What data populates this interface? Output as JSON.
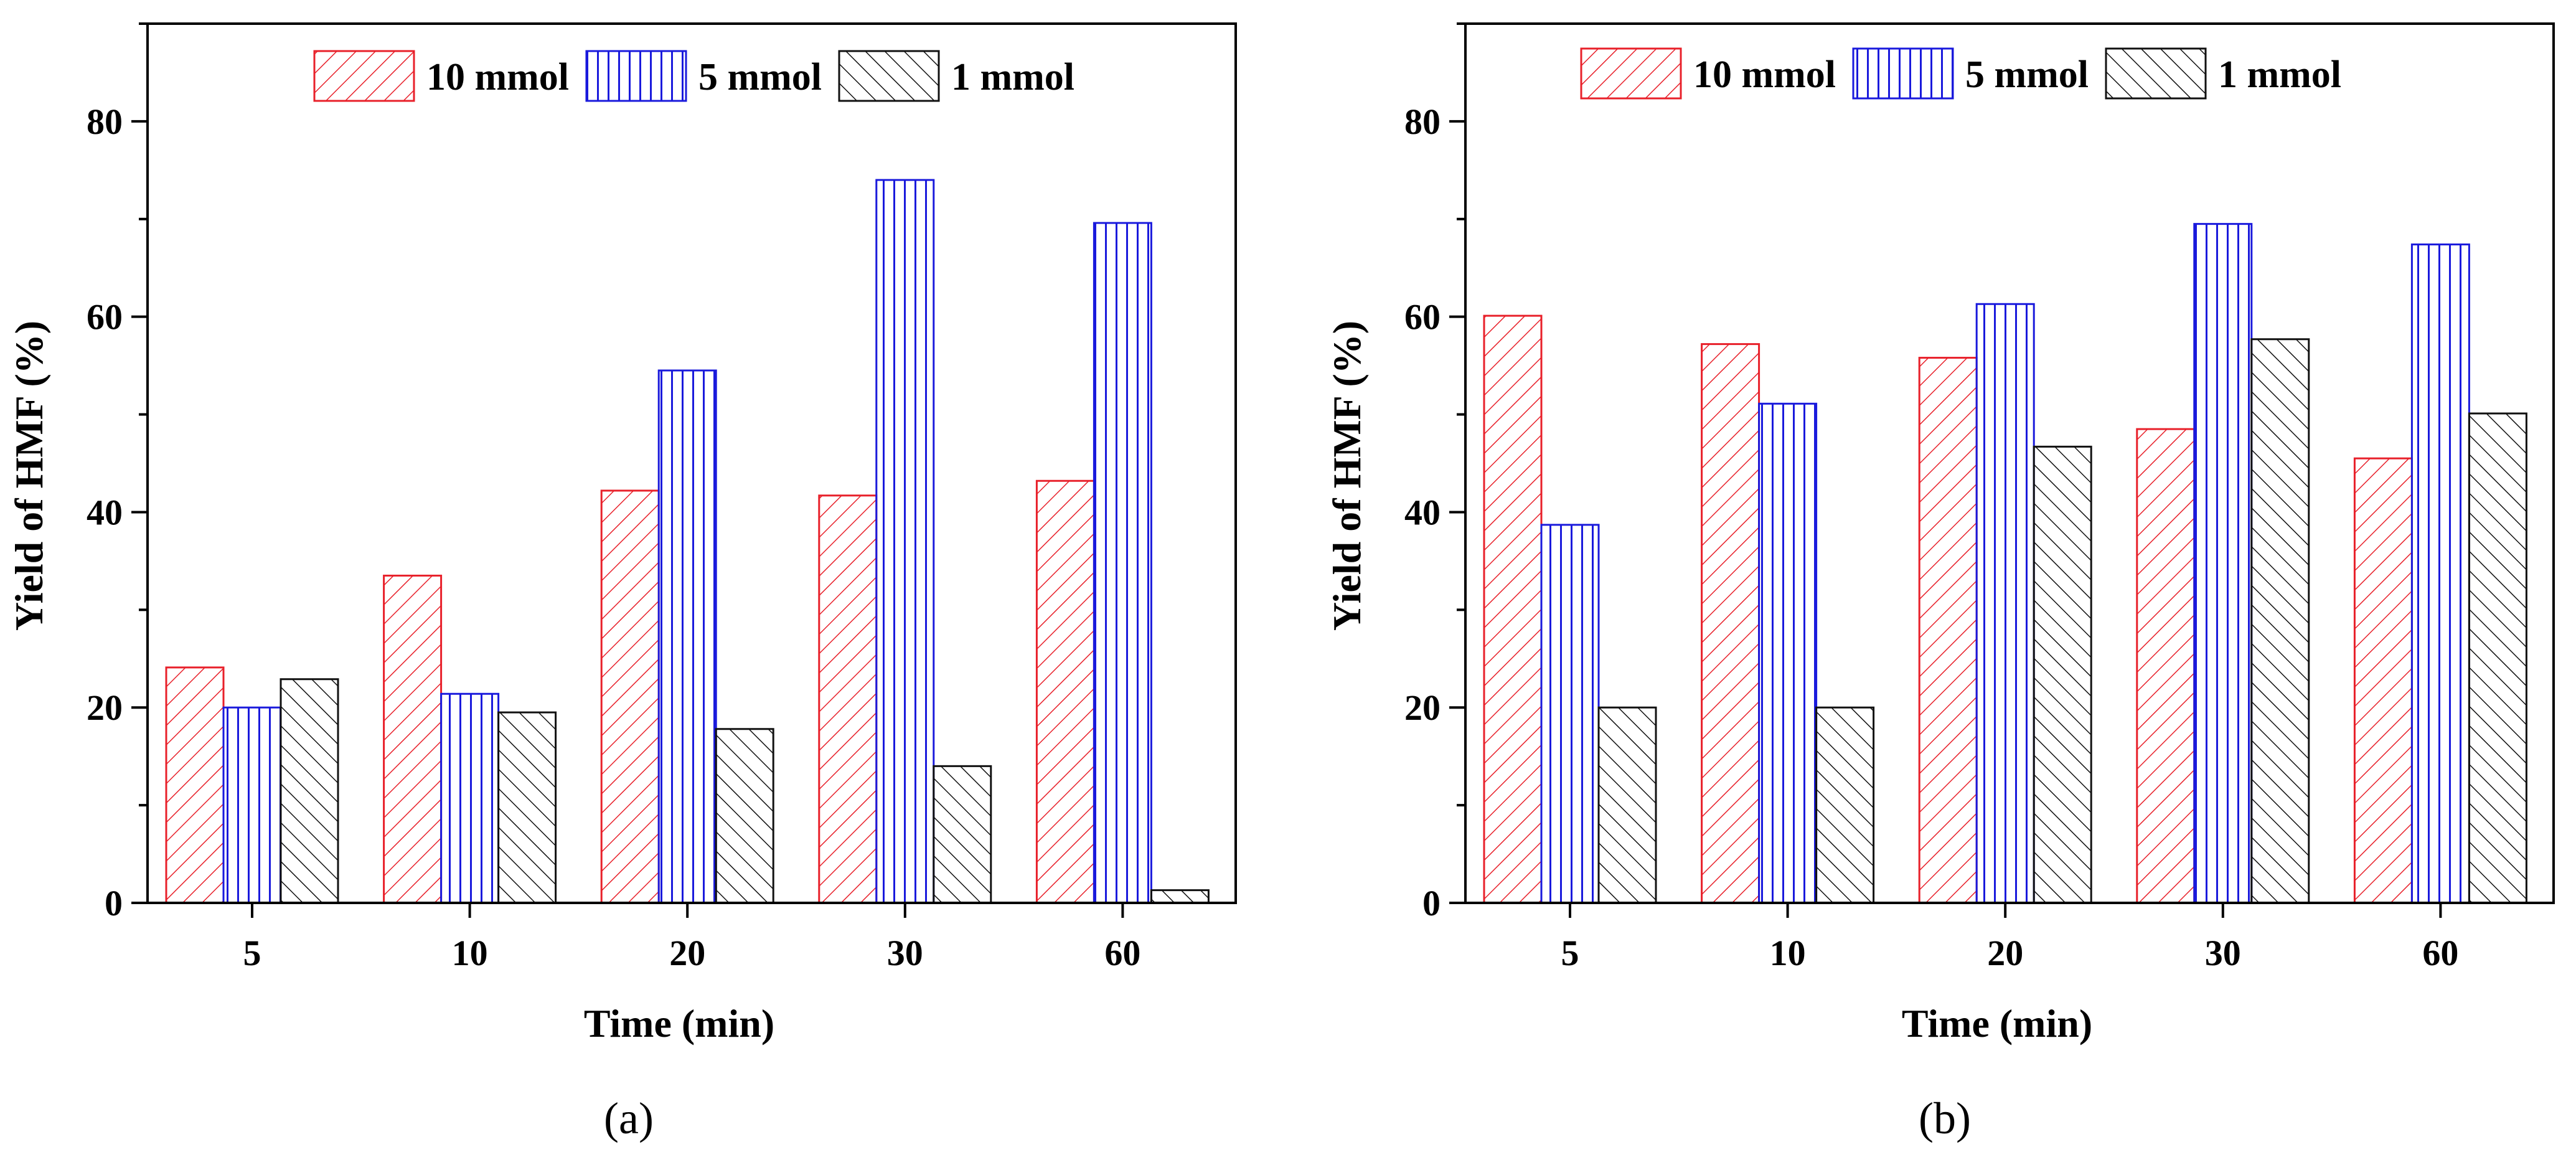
{
  "chart_data": [
    {
      "panel_label": "(a)",
      "type": "bar",
      "title": "",
      "xlabel": "Time (min)",
      "ylabel": "Yield of HMF (%)",
      "ylim": [
        0,
        90
      ],
      "yticks": [
        "0",
        "20",
        "40",
        "60",
        "80"
      ],
      "categories": [
        "5",
        "10",
        "20",
        "30",
        "60"
      ],
      "legend_position": "top",
      "series": [
        {
          "name": "10 mmol",
          "color": "#e8202a",
          "pattern": "diagonal-forward",
          "values": [
            24.1,
            33.5,
            42.2,
            41.7,
            43.2
          ]
        },
        {
          "name": "5 mmol",
          "color": "#1a1adc",
          "pattern": "vertical",
          "values": [
            20.0,
            21.4,
            54.5,
            74.0,
            69.6
          ]
        },
        {
          "name": "1 mmol",
          "color": "#111111",
          "pattern": "diagonal-back",
          "values": [
            22.9,
            19.5,
            17.8,
            14.0,
            1.3
          ]
        }
      ]
    },
    {
      "panel_label": "(b)",
      "type": "bar",
      "title": "",
      "xlabel": "Time (min)",
      "ylabel": "Yield of HMF (%)",
      "ylim": [
        0,
        90
      ],
      "yticks": [
        "0",
        "20",
        "40",
        "60",
        "80"
      ],
      "categories": [
        "5",
        "10",
        "20",
        "30",
        "60"
      ],
      "legend_position": "top",
      "series": [
        {
          "name": "10 mmol",
          "color": "#e8202a",
          "pattern": "diagonal-forward",
          "values": [
            60.1,
            57.2,
            55.8,
            48.5,
            45.5
          ]
        },
        {
          "name": "5 mmol",
          "color": "#1a1adc",
          "pattern": "vertical",
          "values": [
            38.7,
            51.1,
            61.3,
            69.5,
            67.4
          ]
        },
        {
          "name": "1 mmol",
          "color": "#111111",
          "pattern": "diagonal-back",
          "values": [
            20.0,
            20.0,
            46.7,
            57.7,
            50.1
          ]
        }
      ]
    }
  ]
}
